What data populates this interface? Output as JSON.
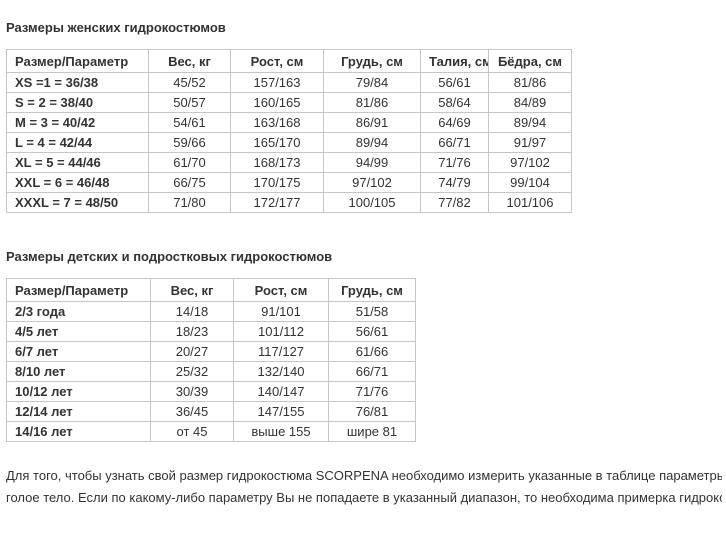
{
  "colors": {
    "text": "#333333",
    "border": "#c6c6c6",
    "background": "#ffffff"
  },
  "women_table": {
    "title": "Размеры женских гидрокостюмов",
    "headers": [
      "Размер/Параметр",
      "Вес, кг",
      "Рост, см",
      "Грудь, см",
      "Талия, см",
      "Бёдра, см"
    ],
    "rows": [
      [
        "XS =1 = 36/38",
        "45/52",
        "157/163",
        "79/84",
        "56/61",
        "81/86"
      ],
      [
        "S = 2 = 38/40",
        "50/57",
        "160/165",
        "81/86",
        "58/64",
        "84/89"
      ],
      [
        "M = 3 = 40/42",
        "54/61",
        "163/168",
        "86/91",
        "64/69",
        "89/94"
      ],
      [
        "L = 4 = 42/44",
        "59/66",
        "165/170",
        "89/94",
        "66/71",
        "91/97"
      ],
      [
        "XL = 5 = 44/46",
        "61/70",
        "168/173",
        "94/99",
        "71/76",
        "97/102"
      ],
      [
        "XXL = 6 = 46/48",
        "66/75",
        "170/175",
        "97/102",
        "74/79",
        "99/104"
      ],
      [
        "XXXL = 7 = 48/50",
        "71/80",
        "172/177",
        "100/105",
        "77/82",
        "101/106"
      ]
    ]
  },
  "kids_table": {
    "title": "Размеры детских и подростковых гидрокостюмов",
    "headers": [
      "Размер/Параметр",
      "Вес, кг",
      "Рост, см",
      "Грудь, см"
    ],
    "rows": [
      [
        "2/3 года",
        "14/18",
        "91/101",
        "51/58"
      ],
      [
        "4/5 лет",
        "18/23",
        "101/112",
        "56/61"
      ],
      [
        "6/7 лет",
        "20/27",
        "117/127",
        "61/66"
      ],
      [
        "8/10 лет",
        "25/32",
        "132/140",
        "66/71"
      ],
      [
        "10/12 лет",
        "30/39",
        "140/147",
        "71/76"
      ],
      [
        "12/14 лет",
        "36/45",
        "147/155",
        "76/81"
      ],
      [
        "14/16 лет",
        "от 45",
        "выше 155",
        "шире 81"
      ]
    ]
  },
  "footer": {
    "note_line1": "Для того, чтобы узнать свой размер гидрокостюма SCORPENA необходимо измерить указанные в таблице параметры на",
    "note_line2": "голое тело. Если по какому-либо параметру Вы не попадаете в указанный диапазон, то необходима примерка гидрокостюма"
  }
}
